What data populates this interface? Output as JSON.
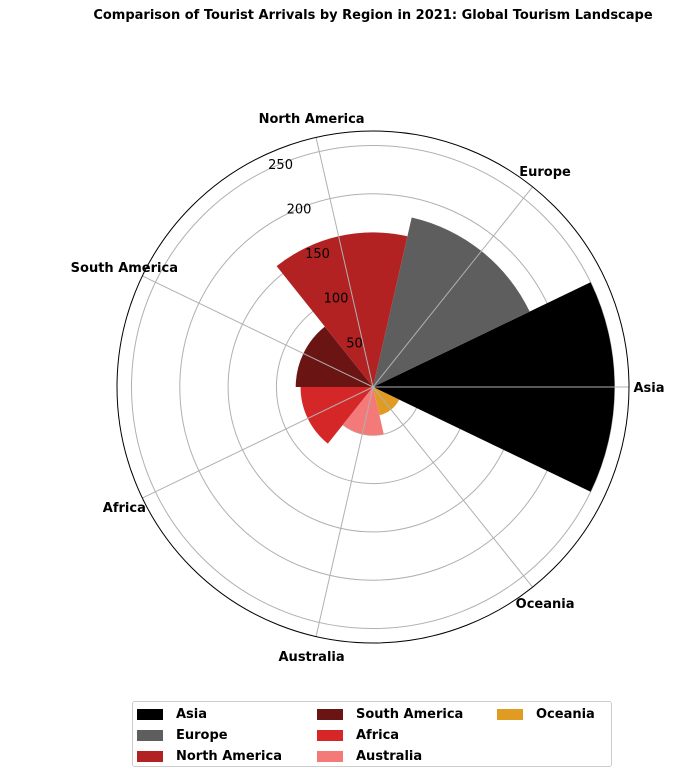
{
  "chart_data": {
    "type": "polar-bar",
    "title": "Comparison of Tourist Arrivals by Region in 2021: Global Tourism Landscape",
    "categories": [
      "Asia",
      "Europe",
      "North America",
      "South America",
      "Africa",
      "Australia",
      "Oceania"
    ],
    "values": [
      250,
      180,
      160,
      80,
      75,
      50,
      30
    ],
    "colors": [
      "#000000",
      "#5e5e5e",
      "#b22222",
      "#6b1414",
      "#d62728",
      "#f47a7a",
      "#e09b22"
    ],
    "radial_ticks": [
      "50",
      "100",
      "150",
      "200",
      "250"
    ],
    "rlim": [
      0,
      265
    ],
    "grid": true,
    "legend": {
      "position": "bottom",
      "entries": [
        "Asia",
        "Europe",
        "North America",
        "South America",
        "Africa",
        "Australia",
        "Oceania"
      ]
    }
  }
}
